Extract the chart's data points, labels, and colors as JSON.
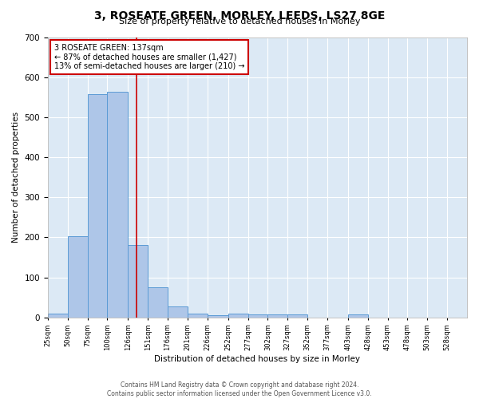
{
  "title": "3, ROSEATE GREEN, MORLEY, LEEDS, LS27 8GE",
  "subtitle": "Size of property relative to detached houses in Morley",
  "xlabel": "Distribution of detached houses by size in Morley",
  "ylabel": "Number of detached properties",
  "bar_color": "#aec6e8",
  "bar_edge_color": "#5b9bd5",
  "background_color": "#dce9f5",
  "grid_color": "#ffffff",
  "annotation_text": "3 ROSEATE GREEN: 137sqm\n← 87% of detached houses are smaller (1,427)\n13% of semi-detached houses are larger (210) →",
  "vline_x": 137,
  "vline_color": "#cc0000",
  "bin_edges": [
    25,
    50,
    75,
    100,
    126,
    151,
    176,
    201,
    226,
    252,
    277,
    302,
    327,
    352,
    377,
    403,
    428,
    453,
    478,
    503,
    528,
    553
  ],
  "bar_heights": [
    10,
    203,
    558,
    563,
    180,
    76,
    28,
    10,
    6,
    10,
    8,
    7,
    7,
    0,
    0,
    8,
    0,
    0,
    0,
    0,
    0
  ],
  "ylim": [
    0,
    700
  ],
  "yticks": [
    0,
    100,
    200,
    300,
    400,
    500,
    600,
    700
  ],
  "xtick_labels": [
    "25sqm",
    "50sqm",
    "75sqm",
    "100sqm",
    "126sqm",
    "151sqm",
    "176sqm",
    "201sqm",
    "226sqm",
    "252sqm",
    "277sqm",
    "302sqm",
    "327sqm",
    "352sqm",
    "377sqm",
    "403sqm",
    "428sqm",
    "453sqm",
    "478sqm",
    "503sqm",
    "528sqm"
  ],
  "footer_line1": "Contains HM Land Registry data © Crown copyright and database right 2024.",
  "footer_line2": "Contains public sector information licensed under the Open Government Licence v3.0."
}
